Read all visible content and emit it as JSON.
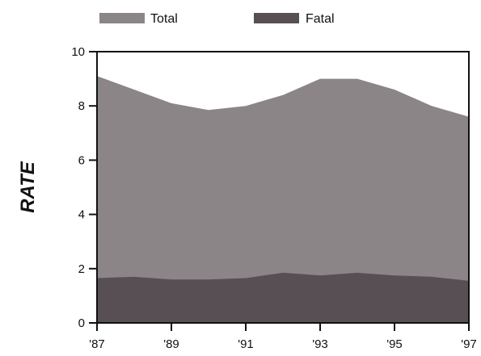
{
  "chart_data": {
    "type": "area",
    "title": "",
    "xlabel": "",
    "ylabel": "RATE",
    "x": [
      1987,
      1988,
      1989,
      1990,
      1991,
      1992,
      1993,
      1994,
      1995,
      1996,
      1997
    ],
    "x_tick_labels": [
      "'87",
      "'89",
      "'91",
      "'93",
      "'95",
      "'97"
    ],
    "x_tick_values": [
      1987,
      1989,
      1991,
      1993,
      1995,
      1997
    ],
    "y_ticks": [
      0,
      2,
      4,
      6,
      8,
      10
    ],
    "ylim": [
      0,
      10
    ],
    "xlim": [
      1987,
      1997
    ],
    "grid": false,
    "legend_position": "top-left",
    "series": [
      {
        "name": "Total",
        "color": "#8b8587",
        "values": [
          9.1,
          8.6,
          8.1,
          7.85,
          8.0,
          8.4,
          9.0,
          9.0,
          8.6,
          8.0,
          7.6
        ]
      },
      {
        "name": "Fatal",
        "color": "#574f53",
        "values": [
          1.65,
          1.7,
          1.6,
          1.6,
          1.65,
          1.85,
          1.75,
          1.85,
          1.75,
          1.7,
          1.55
        ]
      }
    ]
  }
}
